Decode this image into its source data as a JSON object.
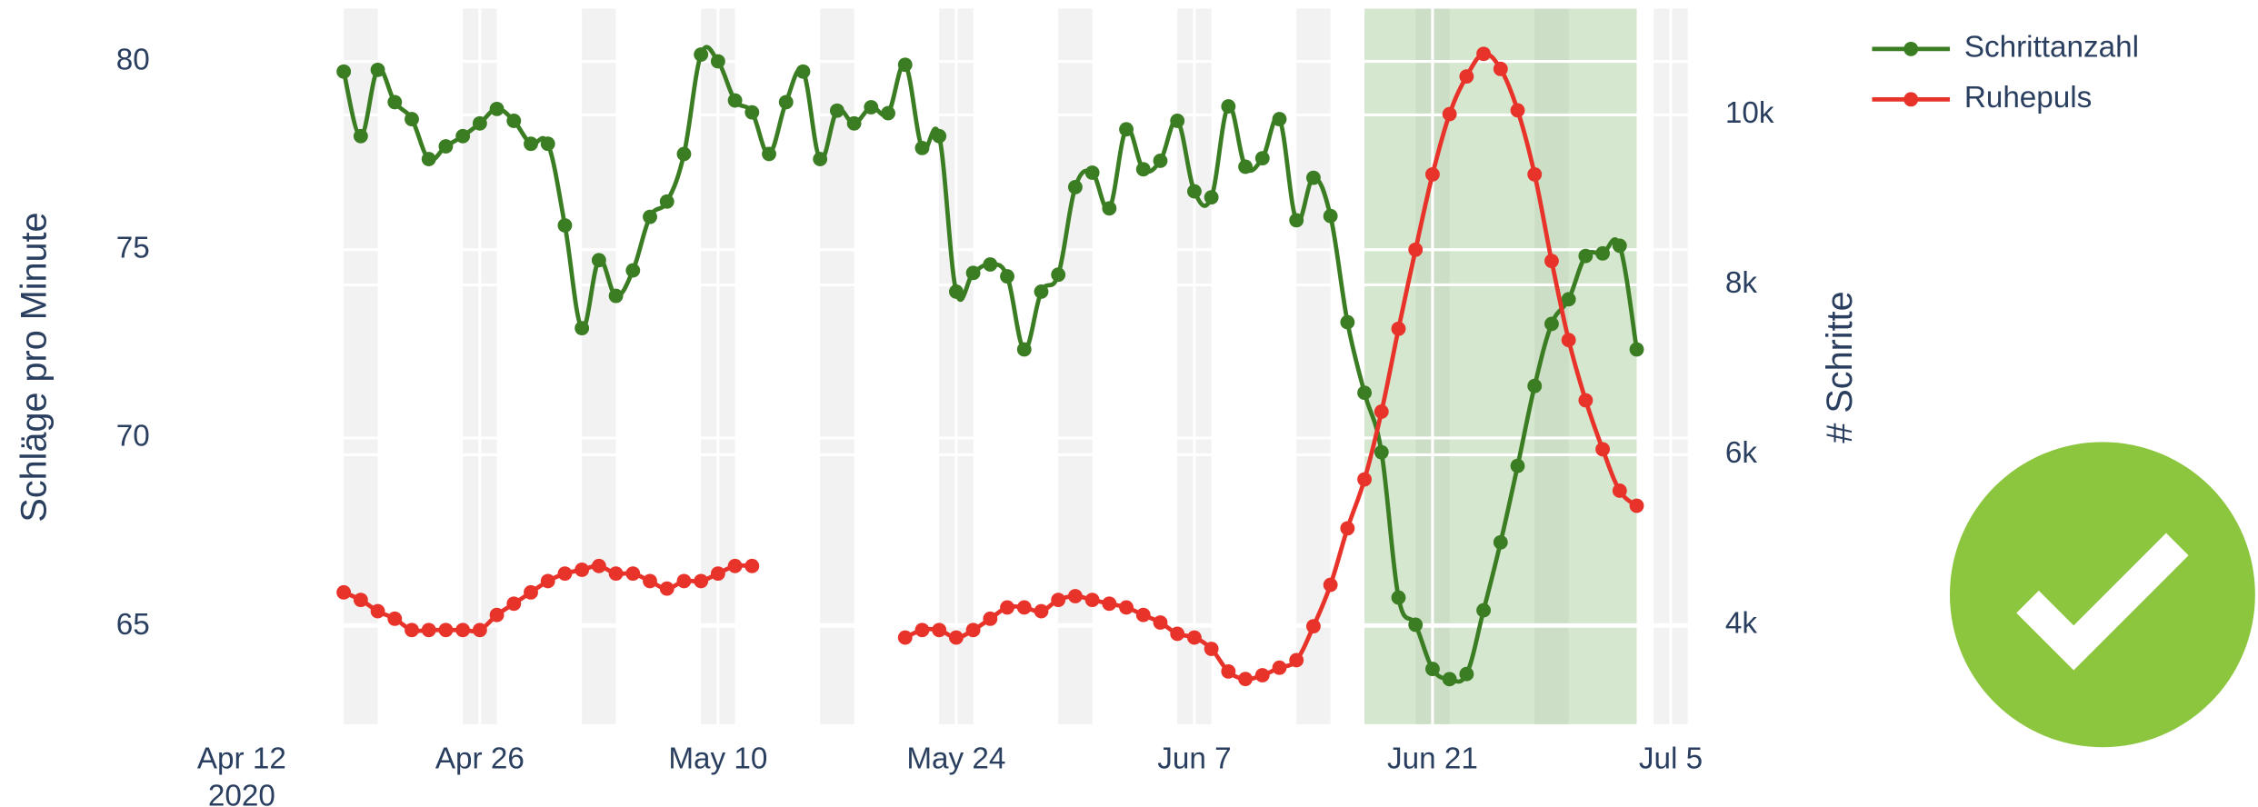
{
  "chart_data": {
    "type": "line",
    "x": [
      "2020-04-18",
      "2020-04-19",
      "2020-04-20",
      "2020-04-21",
      "2020-04-22",
      "2020-04-23",
      "2020-04-24",
      "2020-04-25",
      "2020-04-26",
      "2020-04-27",
      "2020-04-28",
      "2020-04-29",
      "2020-04-30",
      "2020-05-01",
      "2020-05-02",
      "2020-05-03",
      "2020-05-04",
      "2020-05-05",
      "2020-05-06",
      "2020-05-07",
      "2020-05-08",
      "2020-05-09",
      "2020-05-10",
      "2020-05-11",
      "2020-05-12",
      "2020-05-13",
      "2020-05-14",
      "2020-05-15",
      "2020-05-16",
      "2020-05-17",
      "2020-05-18",
      "2020-05-19",
      "2020-05-20",
      "2020-05-21",
      "2020-05-22",
      "2020-05-23",
      "2020-05-24",
      "2020-05-25",
      "2020-05-26",
      "2020-05-27",
      "2020-05-28",
      "2020-05-29",
      "2020-05-30",
      "2020-05-31",
      "2020-06-01",
      "2020-06-02",
      "2020-06-03",
      "2020-06-04",
      "2020-06-05",
      "2020-06-06",
      "2020-06-07",
      "2020-06-08",
      "2020-06-09",
      "2020-06-10",
      "2020-06-11",
      "2020-06-12",
      "2020-06-13",
      "2020-06-14",
      "2020-06-15",
      "2020-06-16",
      "2020-06-17",
      "2020-06-18",
      "2020-06-19",
      "2020-06-20",
      "2020-06-21",
      "2020-06-22",
      "2020-06-23",
      "2020-06-24",
      "2020-06-25",
      "2020-06-26",
      "2020-06-27",
      "2020-06-28",
      "2020-06-29",
      "2020-06-30",
      "2020-07-01",
      "2020-07-02",
      "2020-07-03"
    ],
    "series": [
      {
        "name": "Schrittanzahl",
        "color": "#3b7d23",
        "axis": "y2",
        "values": [
          10510,
          9750,
          10530,
          10150,
          9950,
          9480,
          9630,
          9750,
          9900,
          10070,
          9930,
          9660,
          9660,
          8700,
          7490,
          8290,
          7870,
          8170,
          8800,
          8980,
          9540,
          10710,
          10630,
          10170,
          10030,
          9540,
          10150,
          10510,
          9480,
          10050,
          9900,
          10090,
          10020,
          10590,
          9610,
          9750,
          7920,
          8140,
          8240,
          8100,
          7240,
          7920,
          8120,
          9150,
          9320,
          8900,
          9830,
          9360,
          9460,
          9930,
          9100,
          9030,
          10100,
          9390,
          9490,
          9950,
          8760,
          9260,
          8810,
          7560,
          6730,
          6030,
          4320,
          4000,
          3480,
          3360,
          3420,
          4170,
          4970,
          5870,
          6810,
          7540,
          7830,
          8340,
          8370,
          8460,
          7240
        ]
      },
      {
        "name": "Ruhepuls",
        "color": "#e8332a",
        "values": [
          65.9,
          65.7,
          65.4,
          65.2,
          64.9,
          64.9,
          64.9,
          64.9,
          64.9,
          65.3,
          65.6,
          65.9,
          66.2,
          66.4,
          66.5,
          66.6,
          66.4,
          66.4,
          66.2,
          66.0,
          66.2,
          66.2,
          66.4,
          66.6,
          66.6,
          null,
          null,
          null,
          null,
          null,
          null,
          null,
          null,
          64.7,
          64.9,
          64.9,
          64.7,
          64.9,
          65.2,
          65.5,
          65.5,
          65.4,
          65.7,
          65.8,
          65.7,
          65.6,
          65.5,
          65.3,
          65.1,
          64.8,
          64.7,
          64.4,
          63.8,
          63.6,
          63.7,
          63.9,
          64.1,
          65.0,
          66.1,
          67.6,
          68.9,
          70.7,
          72.9,
          75.0,
          77.0,
          78.6,
          79.6,
          80.2,
          79.8,
          78.7,
          77.0,
          74.7,
          72.6,
          71.0,
          69.7,
          68.6,
          68.2
        ]
      }
    ],
    "xlim": [
      "2020-04-11",
      "2020-07-06"
    ],
    "xticks": [
      {
        "value": "2020-04-12",
        "label": "Apr 12"
      },
      {
        "value": "2020-04-26",
        "label": "Apr 26"
      },
      {
        "value": "2020-05-10",
        "label": "May 10"
      },
      {
        "value": "2020-05-24",
        "label": "May 24"
      },
      {
        "value": "2020-06-07",
        "label": "Jun 7"
      },
      {
        "value": "2020-06-21",
        "label": "Jun 21"
      },
      {
        "value": "2020-07-05",
        "label": "Jul 5"
      }
    ],
    "x_year": "2020",
    "ylim": [
      62.4,
      81.4
    ],
    "yticks": [
      65,
      70,
      75,
      80
    ],
    "y2lim": [
      2830,
      11250
    ],
    "y2ticks": [
      {
        "value": 4000,
        "label": "4k"
      },
      {
        "value": 6000,
        "label": "6k"
      },
      {
        "value": 8000,
        "label": "8k"
      },
      {
        "value": 10000,
        "label": "10k"
      }
    ],
    "ylabel": "Schläge pro Minute",
    "y2label": "# Schritte",
    "grid": true,
    "legend_position": "top-right",
    "weekend_shading": {
      "color": "#f2f2f2",
      "ranges": [
        [
          "2020-04-18",
          "2020-04-20"
        ],
        [
          "2020-04-25",
          "2020-04-27"
        ],
        [
          "2020-05-02",
          "2020-05-04"
        ],
        [
          "2020-05-09",
          "2020-05-11"
        ],
        [
          "2020-05-16",
          "2020-05-18"
        ],
        [
          "2020-05-23",
          "2020-05-25"
        ],
        [
          "2020-05-30",
          "2020-06-01"
        ],
        [
          "2020-06-06",
          "2020-06-08"
        ],
        [
          "2020-06-13",
          "2020-06-15"
        ],
        [
          "2020-06-20",
          "2020-06-22"
        ],
        [
          "2020-06-27",
          "2020-06-29"
        ],
        [
          "2020-07-04",
          "2020-07-06"
        ]
      ]
    },
    "highlight": {
      "color": "rgba(120,175,95,0.30)",
      "range": [
        "2020-06-17",
        "2020-07-03"
      ]
    }
  }
}
